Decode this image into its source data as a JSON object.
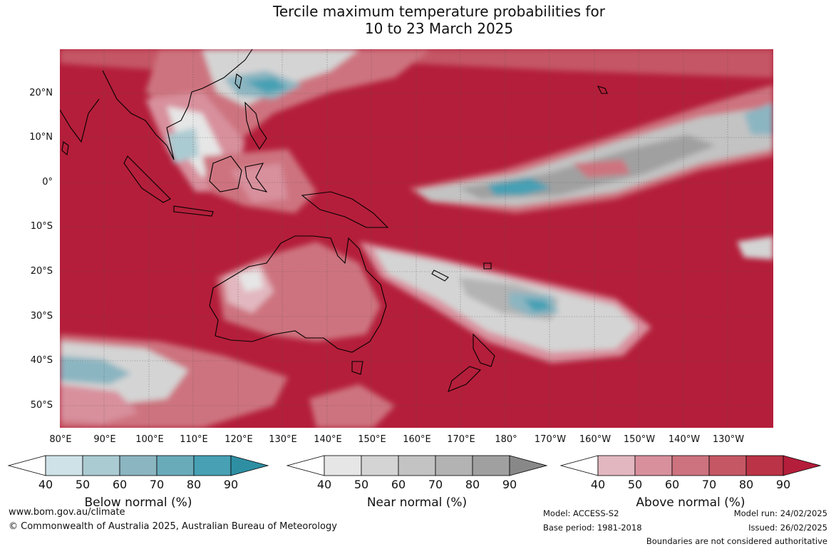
{
  "title_line1": "Tercile maximum temperature probabilities for",
  "title_line2": "10 to 23 March 2025",
  "lat_labels": [
    "20°N",
    "10°N",
    "0°",
    "10°S",
    "20°S",
    "30°S",
    "40°S",
    "50°S"
  ],
  "lon_labels": [
    "80°E",
    "90°E",
    "100°E",
    "110°E",
    "120°E",
    "130°E",
    "140°E",
    "150°E",
    "160°E",
    "170°E",
    "180°",
    "170°W",
    "160°W",
    "150°W",
    "140°W",
    "130°W"
  ],
  "colorbars": [
    {
      "label": "Below normal (%)",
      "ticks": [
        "40",
        "50",
        "60",
        "70",
        "80",
        "90"
      ],
      "colors": [
        "#cfe2e8",
        "#abcbd2",
        "#8bb5c1",
        "#6aabba",
        "#47a0b4",
        "#2e8fa3"
      ]
    },
    {
      "label": "Near normal (%)",
      "ticks": [
        "40",
        "50",
        "60",
        "70",
        "80",
        "90"
      ],
      "colors": [
        "#e6e6e6",
        "#d4d4d4",
        "#c3c3c3",
        "#b3b3b3",
        "#a0a0a0",
        "#888888"
      ]
    },
    {
      "label": "Above normal (%)",
      "ticks": [
        "40",
        "50",
        "60",
        "70",
        "80",
        "90"
      ],
      "colors": [
        "#e2b7bf",
        "#d8909d",
        "#cd737f",
        "#c55765",
        "#bb3346",
        "#b41e3a"
      ]
    }
  ],
  "footer": {
    "website": "www.bom.gov.au/climate",
    "copyright": "© Commonwealth of Australia 2025, Australian Bureau of Meteorology",
    "model": "Model: ACCESS-S2",
    "base_period": "Base period: 1981-2018",
    "model_run": "Model run: 24/02/2025",
    "issued": "Issued: 26/02/2025",
    "disclaimer": "Boundaries are not considered authoritative"
  },
  "colors": {
    "above_90": "#b41e3a",
    "near_90": "#888888",
    "below_90": "#2e8fa3"
  }
}
